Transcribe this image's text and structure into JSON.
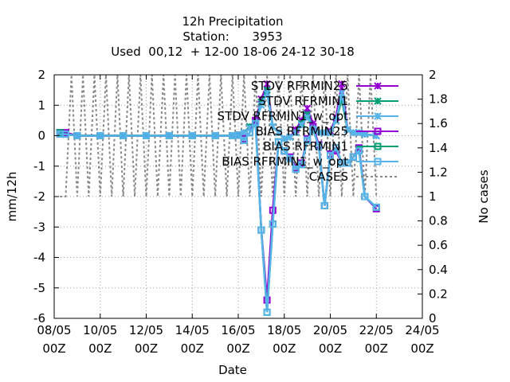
{
  "chart_data": {
    "type": "line",
    "title_lines": [
      "12h Precipitation",
      "Station:      3953",
      "Used  00,12  + 12-00 18-06 24-12 30-18"
    ],
    "xlabel": "Date",
    "ylabel": "mm/12h",
    "y2label": "No cases",
    "xlim": [
      0,
      16
    ],
    "ylim": [
      -6,
      2
    ],
    "y2lim": [
      0,
      2
    ],
    "xtick_values": [
      0,
      2,
      4,
      6,
      8,
      10,
      12,
      14,
      16
    ],
    "xtick_labels": [
      [
        "08/05",
        "00Z"
      ],
      [
        "10/05",
        "00Z"
      ],
      [
        "12/05",
        "00Z"
      ],
      [
        "14/05",
        "00Z"
      ],
      [
        "16/05",
        "00Z"
      ],
      [
        "18/05",
        "00Z"
      ],
      [
        "20/05",
        "00Z"
      ],
      [
        "22/05",
        "00Z"
      ],
      [
        "24/05",
        "00Z"
      ]
    ],
    "ytick_values": [
      2,
      1,
      0,
      -1,
      -2,
      -3,
      -4,
      -5,
      -6
    ],
    "ytick_labels": [
      "2",
      "1",
      "0",
      "-1",
      "-2",
      "-3",
      "-4",
      "-5",
      "-6"
    ],
    "y2tick_values": [
      2,
      1.8,
      1.6,
      1.4,
      1.2,
      1,
      0.8,
      0.6,
      0.4,
      0.2,
      0
    ],
    "y2tick_labels": [
      "2",
      "1.8",
      "1.6",
      "1.4",
      "1.2",
      "1",
      "0.8",
      "0.6",
      "0.4",
      "0.2",
      "0"
    ],
    "grid": true,
    "legend_placement": "top-right",
    "legend_entries": [
      "STDV RFRMIN25",
      "STDV RFRMIN1",
      "STDV RFRMIN1_w_opt",
      "BIAS RFRMIN25",
      "BIAS RFRMIN1",
      "BIAS RFRMIN1_w_opt",
      "CASES"
    ],
    "series": [
      {
        "name": "STDV RFRMIN25",
        "color": "#9400d3",
        "marker": "cross",
        "x": [
          0.25,
          0.5,
          1,
          2,
          3,
          4,
          5,
          6,
          7,
          7.75,
          8,
          8.25,
          8.5,
          8.75,
          9,
          9.25,
          9.5,
          9.75,
          10,
          10.25,
          10.5,
          10.75,
          11,
          11.25,
          11.5,
          11.75,
          12,
          12.25,
          12.5,
          12.75,
          13,
          13.25,
          13.5,
          14
        ],
        "y": [
          0.1,
          0.05,
          0,
          0,
          0,
          0,
          0,
          0,
          0,
          0,
          0.02,
          0.1,
          0.3,
          0.5,
          1.2,
          1.7,
          0.3,
          0.1,
          -0.1,
          -0.05,
          0.2,
          0.5,
          0.9,
          0.4,
          0.1,
          0.1,
          0.15,
          0.6,
          1.7,
          0.2,
          0.1,
          0.1,
          0.05,
          0
        ]
      },
      {
        "name": "STDV RFRMIN1",
        "color": "#009e73",
        "marker": "cross",
        "x": [
          0.25,
          0.5,
          1,
          2,
          3,
          4,
          5,
          6,
          7,
          7.75,
          8,
          8.25,
          8.5,
          8.75,
          9,
          9.25,
          9.5,
          9.75,
          10,
          10.25,
          10.5,
          10.75,
          11,
          11.25,
          11.5,
          11.75,
          12,
          12.25,
          12.5,
          12.75,
          13,
          13.25,
          13.5,
          14
        ],
        "y": [
          0.05,
          0.05,
          0,
          0,
          0,
          0,
          0,
          0,
          0,
          0,
          0.02,
          0.1,
          0.3,
          0.4,
          1.1,
          1.5,
          0.3,
          0.1,
          -0.1,
          -0.05,
          0.1,
          0.4,
          0.7,
          0.3,
          0.1,
          0.1,
          0.1,
          0.5,
          1.2,
          0.2,
          0.1,
          0.1,
          0.05,
          0
        ]
      },
      {
        "name": "STDV RFRMIN1_w_opt",
        "color": "#56b4e9",
        "marker": "cross",
        "x": [
          0.25,
          0.5,
          1,
          2,
          3,
          4,
          5,
          6,
          7,
          7.75,
          8,
          8.25,
          8.5,
          8.75,
          9,
          9.25,
          9.5,
          9.75,
          10,
          10.25,
          10.5,
          10.75,
          11,
          11.25,
          11.5,
          11.75,
          12,
          12.25,
          12.5,
          12.75,
          13,
          13.25,
          13.5,
          14
        ],
        "y": [
          0.05,
          0.05,
          0,
          0,
          0,
          0,
          0,
          0,
          0,
          0,
          0.02,
          0.1,
          0.25,
          0.4,
          1.0,
          1.4,
          0.3,
          0.1,
          -0.1,
          -0.05,
          0.1,
          0.35,
          0.6,
          0.3,
          0.1,
          0.1,
          0.1,
          0.5,
          1.4,
          0.2,
          0.1,
          0.1,
          0.05,
          0
        ]
      },
      {
        "name": "BIAS RFRMIN25",
        "color": "#9400d3",
        "marker": "square",
        "x": [
          0.25,
          0.5,
          1,
          2,
          3,
          4,
          5,
          6,
          7,
          7.75,
          8,
          8.25,
          8.5,
          8.75,
          9,
          9.25,
          9.5,
          9.75,
          10,
          10.25,
          10.5,
          10.75,
          11,
          11.25,
          11.5,
          11.75,
          12,
          12.25,
          12.5,
          12.75,
          13,
          13.25,
          13.5,
          14
        ],
        "y": [
          0.1,
          0.1,
          0,
          0,
          0,
          0,
          0,
          0,
          0,
          0,
          0.02,
          -0.1,
          0.1,
          0.5,
          -3.1,
          -5.4,
          -2.45,
          -0.2,
          -0.5,
          -0.7,
          -1.05,
          -0.9,
          -0.1,
          0.3,
          -0.3,
          -2.3,
          -0.6,
          -0.5,
          -0.9,
          -0.9,
          -0.7,
          -0.4,
          -2.0,
          -2.4
        ]
      },
      {
        "name": "BIAS RFRMIN1",
        "color": "#009e73",
        "marker": "square",
        "x": [
          0.25,
          0.5,
          1,
          2,
          3,
          4,
          5,
          6,
          7,
          7.75,
          8,
          8.25,
          8.5,
          8.75,
          9,
          9.25,
          9.5,
          9.75,
          10,
          10.25,
          10.5,
          10.75,
          11,
          11.25,
          11.5,
          11.75,
          12,
          12.25,
          12.5,
          12.75,
          13,
          13.25,
          13.5,
          14
        ],
        "y": [
          0.1,
          0.05,
          0,
          0,
          0,
          0,
          0,
          0,
          0,
          0,
          0.02,
          -0.15,
          0.1,
          0.4,
          -3.1,
          -5.8,
          -2.9,
          -0.2,
          -0.5,
          -0.75,
          -1.1,
          -0.95,
          -0.15,
          0.2,
          -0.35,
          -2.3,
          -0.65,
          -0.4,
          -0.9,
          -0.9,
          -0.7,
          -0.5,
          -2.0,
          -2.35
        ]
      },
      {
        "name": "BIAS RFRMIN1_w_opt",
        "color": "#56b4e9",
        "marker": "square",
        "x": [
          0.25,
          0.5,
          1,
          2,
          3,
          4,
          5,
          6,
          7,
          7.75,
          8,
          8.25,
          8.5,
          8.75,
          9,
          9.25,
          9.5,
          9.75,
          10,
          10.25,
          10.5,
          10.75,
          11,
          11.25,
          11.5,
          11.75,
          12,
          12.25,
          12.5,
          12.75,
          13,
          13.25,
          13.5,
          14
        ],
        "y": [
          0.05,
          0.05,
          0,
          0,
          0,
          0,
          0,
          0,
          0,
          0,
          0.02,
          -0.15,
          0.1,
          0.4,
          -3.1,
          -5.8,
          -2.9,
          -0.2,
          -0.5,
          -0.75,
          -1.1,
          -0.95,
          -0.15,
          0.2,
          -0.35,
          -2.3,
          -0.65,
          -0.4,
          -0.9,
          -0.9,
          -0.7,
          -0.5,
          -2.0,
          -2.35
        ]
      },
      {
        "name": "CASES",
        "color": "#888888",
        "marker": "none",
        "dashed": true,
        "axis": "y2",
        "x": [
          0.25,
          0.5,
          0.75,
          1,
          1.25,
          1.5,
          1.75,
          2,
          2.25,
          2.5,
          2.75,
          3,
          3.25,
          3.5,
          3.75,
          4,
          4.25,
          4.5,
          4.75,
          5,
          5.25,
          5.5,
          5.75,
          6,
          6.25,
          6.5,
          6.75,
          7,
          7.25,
          7.5,
          7.75,
          8,
          8.25,
          8.5,
          8.75,
          9,
          9.25,
          9.5,
          9.75,
          10,
          10.25,
          10.5,
          10.75,
          11,
          11.25,
          11.5,
          11.75,
          12,
          12.25,
          12.5,
          12.75,
          13,
          13.25,
          13.5,
          13.75,
          14
        ],
        "y": [
          1,
          1,
          2,
          1,
          2,
          1,
          2,
          1,
          2,
          1,
          2,
          1,
          2,
          1,
          2,
          1,
          2,
          1,
          2,
          1,
          2,
          1,
          2,
          1,
          2,
          1,
          2,
          1,
          2,
          1,
          2,
          1,
          2,
          1,
          2,
          1,
          2,
          1,
          2,
          1,
          2,
          1,
          2,
          1,
          2,
          1,
          2,
          1,
          2,
          1,
          2,
          1,
          2,
          1,
          2,
          1
        ]
      }
    ]
  }
}
